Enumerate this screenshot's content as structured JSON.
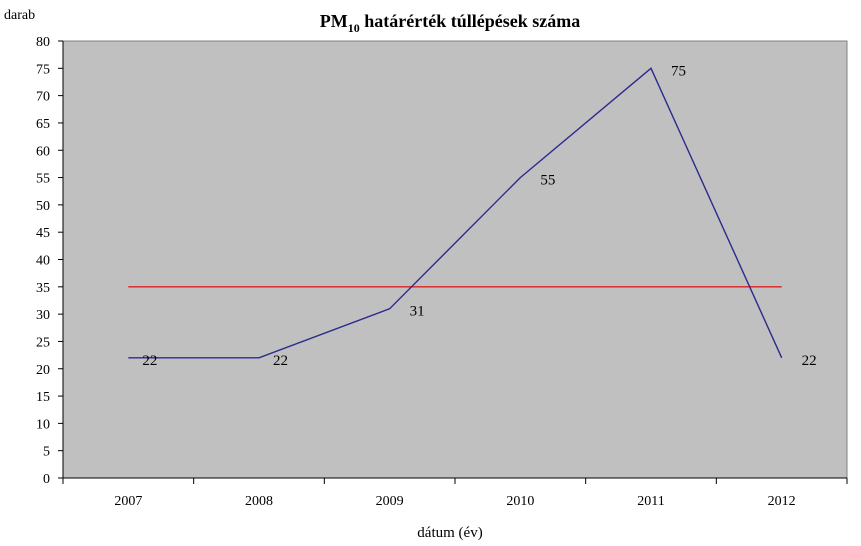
{
  "chart_data": {
    "type": "line",
    "title": {
      "main": "PM",
      "sub": "10",
      "rest": " határérték túllépések száma"
    },
    "ylabel": "darab",
    "xlabel": "dátum (év)",
    "categories": [
      "2007",
      "2008",
      "2009",
      "2010",
      "2011",
      "2012"
    ],
    "ylim": [
      0,
      80
    ],
    "yticks": [
      0,
      5,
      10,
      15,
      20,
      25,
      30,
      35,
      40,
      45,
      50,
      55,
      60,
      65,
      70,
      75,
      80
    ],
    "grid": false,
    "legend": "none",
    "series": [
      {
        "values": [
          22,
          22,
          31,
          55,
          75,
          22
        ],
        "color": "#2b2b8f",
        "data_labels": [
          "22",
          "22",
          "31",
          "55",
          "75",
          "22"
        ]
      },
      {
        "values": [
          35,
          35,
          35,
          35,
          35,
          35
        ],
        "color": "#e02020"
      }
    ],
    "plot_background": "#c0c0c0"
  }
}
